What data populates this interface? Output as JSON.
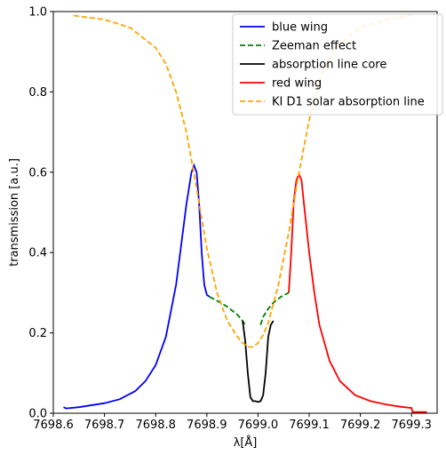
{
  "chart_data": {
    "type": "line",
    "title": "",
    "xlabel": "λ[Å]",
    "ylabel": "transmission [a.u.]",
    "xlim": [
      7698.6,
      7699.35
    ],
    "ylim": [
      0.0,
      1.0
    ],
    "x_ticks": [
      "7698.6",
      "7698.7",
      "7698.8",
      "7698.9",
      "7699.0",
      "7699.1",
      "7699.2",
      "7699.3"
    ],
    "y_ticks": [
      "0.0",
      "0.2",
      "0.4",
      "0.6",
      "0.8",
      "1.0"
    ],
    "grid": false,
    "legend_position": "top-right",
    "series": [
      {
        "name": "blue wing",
        "color": "#0000ff",
        "style": "solid",
        "x": [
          7698.62,
          7698.625,
          7698.65,
          7698.7,
          7698.73,
          7698.76,
          7698.78,
          7698.8,
          7698.82,
          7698.84,
          7698.85,
          7698.86,
          7698.87,
          7698.875,
          7698.88,
          7698.885,
          7698.89,
          7698.895,
          7698.9,
          7698.905
        ],
        "y": [
          0.015,
          0.012,
          0.015,
          0.025,
          0.035,
          0.055,
          0.08,
          0.12,
          0.19,
          0.32,
          0.42,
          0.52,
          0.6,
          0.617,
          0.6,
          0.52,
          0.4,
          0.32,
          0.295,
          0.29
        ]
      },
      {
        "name": "Zeeman effect",
        "color": "#008000",
        "style": "dashed",
        "x": [
          7698.905,
          7698.92,
          7698.94,
          7698.96,
          7698.97,
          7698.975
        ],
        "y": [
          0.29,
          0.28,
          0.265,
          0.245,
          0.23,
          0.22
        ],
        "x2": [
          7699.005,
          7699.01,
          7699.02,
          7699.03,
          7699.045,
          7699.06
        ],
        "y2": [
          0.22,
          0.24,
          0.26,
          0.275,
          0.29,
          0.3
        ]
      },
      {
        "name": "absorption line core",
        "color": "#000000",
        "style": "solid",
        "x": [
          7698.97,
          7698.975,
          7698.98,
          7698.985,
          7698.99,
          7698.995,
          7699.0,
          7699.005,
          7699.01,
          7699.015,
          7699.02,
          7699.025,
          7699.03
        ],
        "y": [
          0.23,
          0.18,
          0.1,
          0.04,
          0.03,
          0.03,
          0.028,
          0.03,
          0.045,
          0.1,
          0.19,
          0.22,
          0.23
        ]
      },
      {
        "name": "red wing",
        "color": "#ff0000",
        "style": "solid",
        "x": [
          7699.06,
          7699.065,
          7699.07,
          7699.075,
          7699.08,
          7699.085,
          7699.09,
          7699.1,
          7699.11,
          7699.12,
          7699.14,
          7699.16,
          7699.19,
          7699.22,
          7699.25,
          7699.28,
          7699.3,
          7699.302,
          7699.31,
          7699.33
        ],
        "y": [
          0.3,
          0.4,
          0.53,
          0.58,
          0.595,
          0.58,
          0.52,
          0.4,
          0.3,
          0.22,
          0.13,
          0.08,
          0.045,
          0.03,
          0.022,
          0.016,
          0.013,
          0.003,
          0.003,
          0.003
        ]
      },
      {
        "name": "KI D1 solar absorption line",
        "color": "#ffa500",
        "style": "dashed",
        "x": [
          7698.64,
          7698.7,
          7698.75,
          7698.8,
          7698.82,
          7698.84,
          7698.86,
          7698.88,
          7698.9,
          7698.92,
          7698.94,
          7698.96,
          7698.97,
          7698.98,
          7698.99,
          7699.0,
          7699.01,
          7699.02,
          7699.04,
          7699.06,
          7699.08,
          7699.1,
          7699.12,
          7699.15,
          7699.2,
          7699.25,
          7699.3
        ],
        "y": [
          0.99,
          0.98,
          0.96,
          0.91,
          0.87,
          0.8,
          0.7,
          0.56,
          0.41,
          0.3,
          0.23,
          0.19,
          0.175,
          0.165,
          0.165,
          0.175,
          0.195,
          0.225,
          0.32,
          0.45,
          0.6,
          0.73,
          0.83,
          0.91,
          0.96,
          0.98,
          0.99
        ]
      }
    ]
  }
}
